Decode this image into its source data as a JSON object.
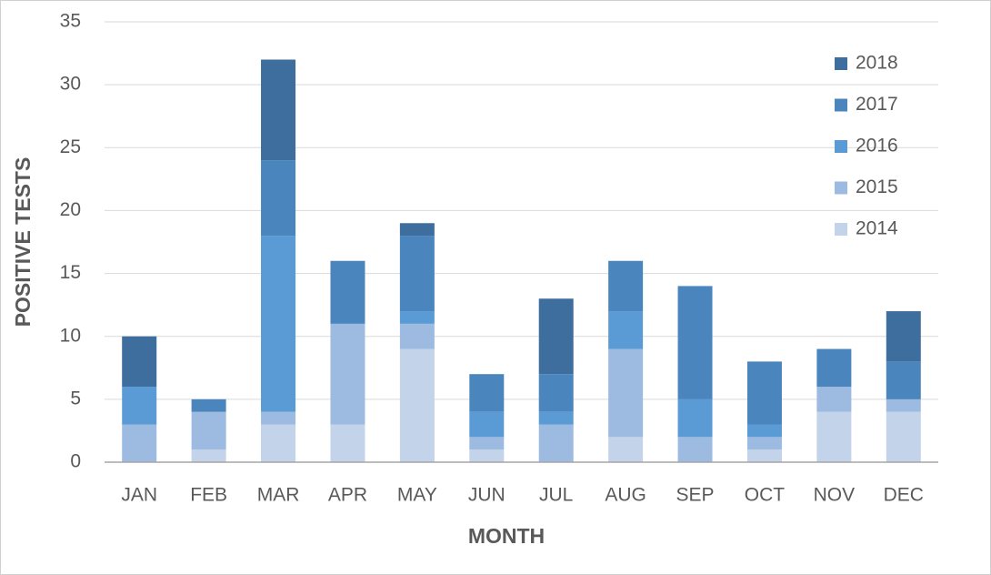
{
  "chart_data": {
    "type": "stacked_bar",
    "x_label": "MONTH",
    "y_label": "POSITIVE TESTS",
    "categories": [
      "JAN",
      "FEB",
      "MAR",
      "APR",
      "MAY",
      "JUN",
      "JUL",
      "AUG",
      "SEP",
      "OCT",
      "NOV",
      "DEC"
    ],
    "series": [
      {
        "name": "2014",
        "color": "#c2d3ea",
        "values": [
          0,
          1,
          3,
          3,
          9,
          1,
          0,
          2,
          0,
          1,
          4,
          4
        ]
      },
      {
        "name": "2015",
        "color": "#9dbbe1",
        "values": [
          3,
          3,
          1,
          8,
          2,
          1,
          3,
          7,
          2,
          1,
          2,
          1
        ]
      },
      {
        "name": "2016",
        "color": "#5b9bd5",
        "values": [
          3,
          0,
          14,
          0,
          1,
          2,
          1,
          3,
          3,
          1,
          0,
          0
        ]
      },
      {
        "name": "2017",
        "color": "#4a86bd",
        "values": [
          0,
          1,
          6,
          5,
          6,
          3,
          3,
          4,
          9,
          5,
          3,
          3
        ]
      },
      {
        "name": "2018",
        "color": "#3e6e9d",
        "values": [
          4,
          0,
          8,
          0,
          1,
          0,
          6,
          0,
          0,
          0,
          0,
          4
        ]
      }
    ],
    "ylim": [
      0,
      35
    ],
    "yticks": [
      0,
      5,
      10,
      15,
      20,
      25,
      30,
      35
    ],
    "grid": true,
    "legend": "right"
  }
}
